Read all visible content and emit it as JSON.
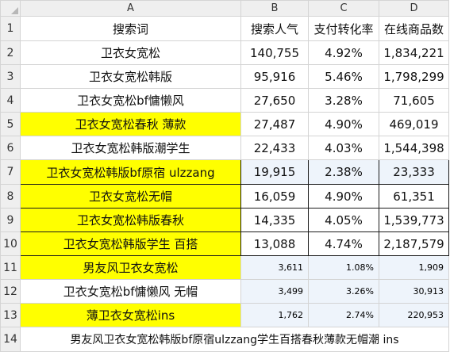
{
  "columns": [
    "A",
    "B",
    "C",
    "D"
  ],
  "header_row": [
    "搜索词",
    "搜索人气",
    "支付转化率",
    "在线商品数"
  ],
  "rows": [
    {
      "n": "2",
      "a": "卫衣女宽松",
      "b": "140,755",
      "c": "4.92%",
      "d": "1,834,221"
    },
    {
      "n": "3",
      "a": "卫衣女宽松韩版",
      "b": "95,916",
      "c": "5.46%",
      "d": "1,798,299"
    },
    {
      "n": "4",
      "a": "卫衣女宽松bf慵懒风",
      "b": "27,650",
      "c": "3.28%",
      "d": "71,605"
    },
    {
      "n": "5",
      "a": "卫衣女宽松春秋 薄款",
      "b": "27,487",
      "c": "4.90%",
      "d": "469,019"
    },
    {
      "n": "6",
      "a": "卫衣女宽松韩版潮学生",
      "b": "22,433",
      "c": "4.03%",
      "d": "1,544,398"
    },
    {
      "n": "7",
      "a": "卫衣女宽松韩版bf原宿 ulzzang",
      "b": "19,915",
      "c": "2.38%",
      "d": "23,333"
    },
    {
      "n": "8",
      "a": "卫衣女宽松无帽",
      "b": "16,059",
      "c": "4.90%",
      "d": "61,351"
    },
    {
      "n": "9",
      "a": "卫衣女宽松韩版春秋",
      "b": "14,335",
      "c": "4.05%",
      "d": "1,539,773"
    },
    {
      "n": "10",
      "a": "卫衣女宽松韩版学生 百搭",
      "b": "13,088",
      "c": "4.74%",
      "d": "2,187,579"
    },
    {
      "n": "11",
      "a": "男友风卫衣女宽松",
      "b": "3,611",
      "c": "1.08%",
      "d": "1,909"
    },
    {
      "n": "12",
      "a": "卫衣女宽松bf慵懒风 无帽",
      "b": "3,499",
      "c": "3.26%",
      "d": "30,913"
    },
    {
      "n": "13",
      "a": "薄卫衣女宽松ins",
      "b": "1,762",
      "c": "2.74%",
      "d": "220,953"
    }
  ],
  "row1_label": "1",
  "row14": {
    "n": "14",
    "text": "男友风卫衣女宽松韩版bf原宿ulzzang学生百搭春秋薄款无帽潮 ins"
  },
  "colors": {
    "highlight": "#ffff00",
    "light_blue": "#eef4fb",
    "header_gray": "#efefef",
    "gridline": "#d4d4d4"
  }
}
